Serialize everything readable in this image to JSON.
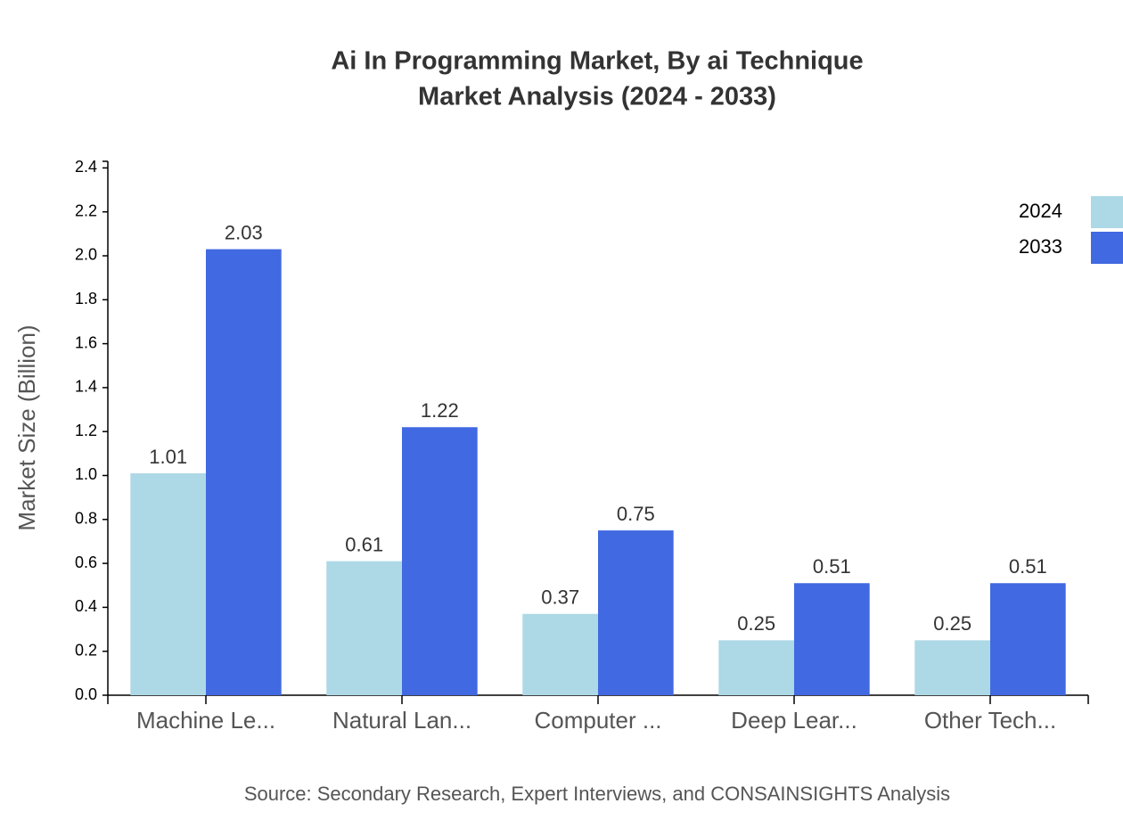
{
  "chart_data": {
    "type": "bar",
    "title": "Ai In Programming Market, By ai Technique",
    "subtitle": "Market Analysis (2024 - 2033)",
    "y_label": "Market Size (Billion)",
    "source": "Source: Secondary Research, Expert Interviews, and CONSAINSIGHTS Analysis",
    "categories": [
      "Machine Le...",
      "Natural Lan...",
      "Computer ...",
      "Deep Lear...",
      "Other Tech..."
    ],
    "series": [
      {
        "name": "2024",
        "color": "#add8e6",
        "values": [
          1.01,
          0.61,
          0.37,
          0.25,
          0.25
        ]
      },
      {
        "name": "2033",
        "color": "#4169e1",
        "values": [
          2.03,
          1.22,
          0.75,
          0.51,
          0.51
        ]
      }
    ],
    "ylim": [
      0,
      2.43
    ],
    "yticks": [
      {
        "value": 0,
        "label": "0.0"
      },
      0.2,
      0.4,
      0.6,
      0.8,
      {
        "value": 1,
        "label": "1.0"
      },
      1.2,
      1.4,
      1.6,
      1.8,
      {
        "value": 2,
        "label": "2.0"
      },
      2.2,
      2.4
    ],
    "legend": "top-right"
  }
}
